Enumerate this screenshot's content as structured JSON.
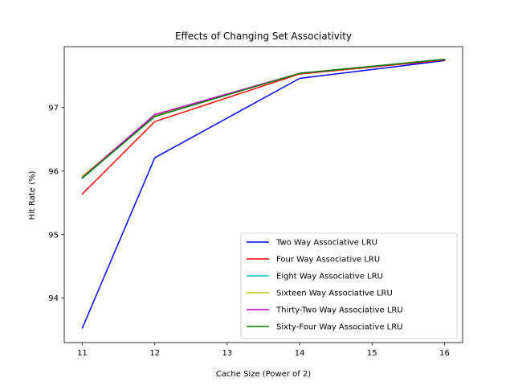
{
  "chart_data": {
    "type": "line",
    "title": "Effects of Changing Set Associativity",
    "xlabel": "Cache Size (Power of 2)",
    "ylabel": "Hit Rate (%)",
    "xlim": [
      10.75,
      16.25
    ],
    "ylim": [
      93.3,
      97.96
    ],
    "xticks": [
      11,
      12,
      13,
      14,
      15,
      16
    ],
    "yticks": [
      94,
      95,
      96,
      97
    ],
    "grid": false,
    "legend_position": "lower-right",
    "x": [
      11,
      12,
      14,
      16
    ],
    "series": [
      {
        "name": "Two Way Associative LRU",
        "color": "#0000ff",
        "values": [
          93.53,
          96.21,
          97.46,
          97.74
        ]
      },
      {
        "name": "Four Way Associative LRU",
        "color": "#ff0000",
        "values": [
          95.64,
          96.78,
          97.53,
          97.75
        ]
      },
      {
        "name": "Eight Way Associative LRU",
        "color": "#00bfbf",
        "values": [
          95.89,
          96.86,
          97.54,
          97.76
        ]
      },
      {
        "name": "Sixteen Way Associative LRU",
        "color": "#bfbf00",
        "values": [
          95.92,
          96.87,
          97.54,
          97.76
        ]
      },
      {
        "name": "Thirty-Two Way Associative LRU",
        "color": "#bf00bf",
        "values": [
          95.9,
          96.89,
          97.54,
          97.76
        ]
      },
      {
        "name": "Sixty-Four Way Associative LRU",
        "color": "#008000",
        "values": [
          95.89,
          96.86,
          97.54,
          97.76
        ]
      }
    ]
  }
}
